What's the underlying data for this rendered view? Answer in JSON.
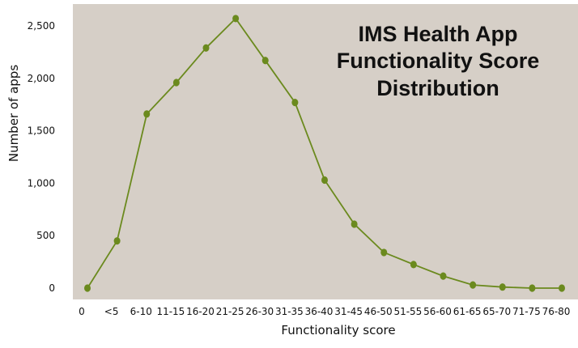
{
  "chart_data": {
    "type": "line",
    "title": [
      "IMS Health App",
      "Functionality Score",
      "Distribution"
    ],
    "xlabel": "Functionality score",
    "ylabel": "Number of apps",
    "categories": [
      "0",
      "<5",
      "6-10",
      "11-15",
      "16-20",
      "21-25",
      "26-30",
      "31-35",
      "36-40",
      "31-45",
      "46-50",
      "51-55",
      "56-60",
      "61-65",
      "65-70",
      "71-75",
      "76-80"
    ],
    "values": [
      0,
      450,
      1660,
      1960,
      2290,
      2570,
      2170,
      1770,
      1030,
      610,
      340,
      225,
      115,
      30,
      10,
      0,
      0
    ],
    "y_ticks": [
      0,
      500,
      1000,
      1500,
      2000,
      2500
    ],
    "y_tick_labels": [
      "0",
      "500",
      "1,000",
      "1,500",
      "2,000",
      "2,500"
    ],
    "ylim": [
      0,
      2750
    ],
    "grid": false,
    "colors": {
      "plot_background": "#d6cfc7",
      "line": "#6b8a1e",
      "marker": "#6b8a1e"
    }
  }
}
